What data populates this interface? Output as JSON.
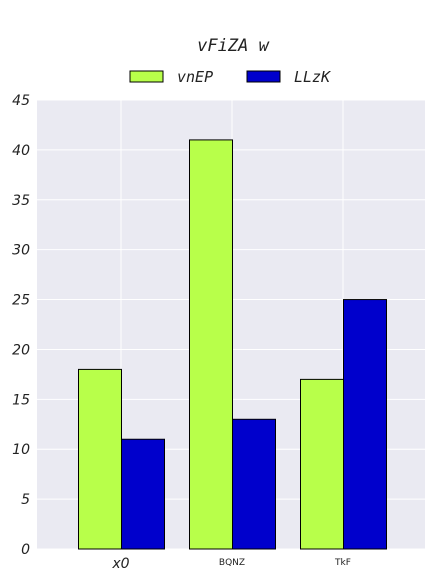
{
  "chart_data": {
    "type": "bar",
    "title": "vFiZA w",
    "xlabel": "",
    "ylabel": "",
    "categories": [
      "x0",
      "BQNZ",
      "TkF"
    ],
    "series": [
      {
        "name": "vnEP",
        "values": [
          18,
          41,
          17
        ],
        "color": "#b8ff4a"
      },
      {
        "name": "LLzK",
        "values": [
          11,
          13,
          25
        ],
        "color": "#0000cc"
      }
    ],
    "ylim": [
      0,
      45
    ],
    "yticks": [
      "0",
      "5",
      "10",
      "15",
      "20",
      "25",
      "30",
      "35",
      "40",
      "45"
    ],
    "grid": true,
    "legend": "top-center",
    "background": "#eaeaf2"
  }
}
